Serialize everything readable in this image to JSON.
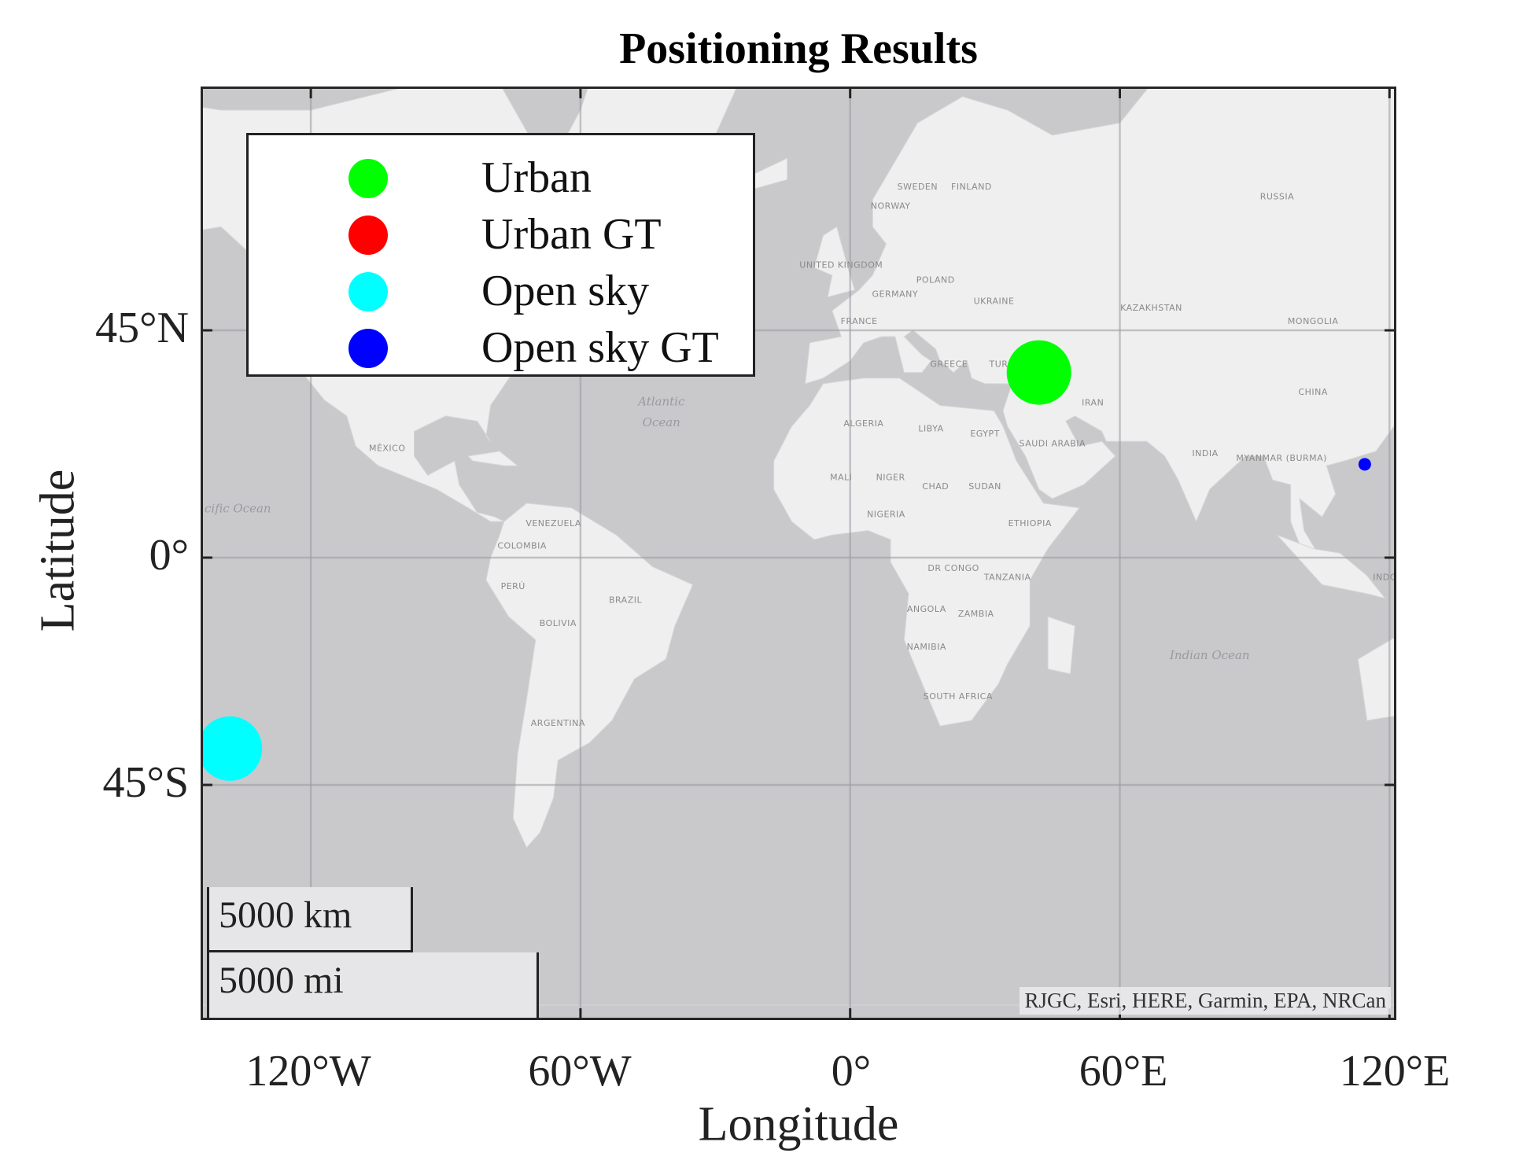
{
  "title": "Positioning Results",
  "xlabel": "Longitude",
  "ylabel": "Latitude",
  "x_ticks": [
    "120°W",
    "60°W",
    "0°",
    "60°E",
    "120°E"
  ],
  "y_ticks": [
    "45°N",
    "0°",
    "45°S"
  ],
  "legend": [
    {
      "label": "Urban",
      "color": "#00ff00"
    },
    {
      "label": "Urban GT",
      "color": "#ff0000"
    },
    {
      "label": "Open sky",
      "color": "#00ffff"
    },
    {
      "label": "Open sky GT",
      "color": "#0000ff"
    }
  ],
  "scale_bar": {
    "km_label": "5000 km",
    "mi_label": "5000 mi"
  },
  "attribution": "RJGC, Esri, HERE, Garmin, EPA, NRCan",
  "basemap_labels": {
    "countries": [
      "SWEDEN",
      "FINLAND",
      "NORWAY",
      "RUSSIA",
      "UNITED KINGDOM",
      "POLAND",
      "GERMANY",
      "UKRAINE",
      "KAZAKHSTAN",
      "FRANCE",
      "MONGOLIA",
      "GREECE",
      "TURKEY",
      "IRAN",
      "CHINA",
      "MÉXICO",
      "ALGERIA",
      "LIBYA",
      "EGYPT",
      "SAUDI ARABIA",
      "INDIA",
      "MYANMAR (BURMA)",
      "MALI",
      "NIGER",
      "CHAD",
      "SUDAN",
      "NIGERIA",
      "ETHIOPIA",
      "VENEZUELA",
      "COLOMBIA",
      "DR CONGO",
      "TANZANIA",
      "PERÚ",
      "BRAZIL",
      "BOLIVIA",
      "ANGOLA",
      "ZAMBIA",
      "NAMIBIA",
      "SOUTH AFRICA",
      "ARGENTINA",
      "INDO"
    ],
    "oceans": [
      "Atlantic Ocean",
      "Indian Ocean",
      "cific Ocean"
    ]
  },
  "chart_data": {
    "type": "scatter",
    "title": "Positioning Results",
    "xlabel": "Longitude",
    "ylabel": "Latitude",
    "xlim": [
      -144,
      121
    ],
    "ylim": [
      -82,
      82
    ],
    "grid": true,
    "legend_placement": "top-left",
    "series": [
      {
        "name": "Urban",
        "color": "#00ff00",
        "points": [
          {
            "lon": 42,
            "lat": 38
          }
        ],
        "marker_size": "large"
      },
      {
        "name": "Urban GT",
        "color": "#ff0000",
        "points": [],
        "marker_size": "large"
      },
      {
        "name": "Open sky",
        "color": "#00ffff",
        "points": [
          {
            "lon": -138,
            "lat": -39
          }
        ],
        "marker_size": "large"
      },
      {
        "name": "Open sky GT",
        "color": "#0000ff",
        "points": [
          {
            "lon": 114.5,
            "lat": 20.3
          }
        ],
        "marker_size": "small"
      }
    ]
  }
}
